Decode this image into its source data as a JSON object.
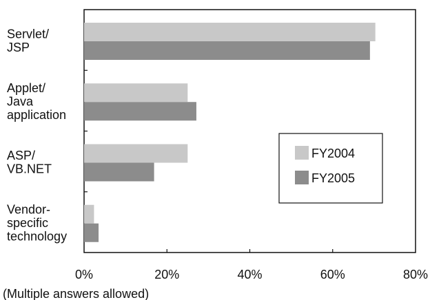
{
  "chart_data": {
    "type": "bar",
    "orientation": "horizontal",
    "categories": [
      [
        "Servlet/",
        "JSP"
      ],
      [
        "Applet/",
        "Java",
        "application"
      ],
      [
        "ASP/",
        "VB.NET"
      ],
      [
        "Vendor-",
        "specific",
        "technology"
      ]
    ],
    "series": [
      {
        "name": "FY2004",
        "color": "#c8c8c8",
        "values": [
          70.3,
          25.0,
          25.0,
          2.4
        ]
      },
      {
        "name": "FY2005",
        "color": "#8c8c8c",
        "values": [
          69.0,
          27.1,
          16.9,
          3.5
        ]
      }
    ],
    "x_ticks": [
      "0%",
      "20%",
      "40%",
      "60%",
      "80%"
    ],
    "xlim": [
      0,
      80
    ],
    "legend_position": "right-middle",
    "grid": false,
    "note": "(Multiple answers allowed)"
  }
}
